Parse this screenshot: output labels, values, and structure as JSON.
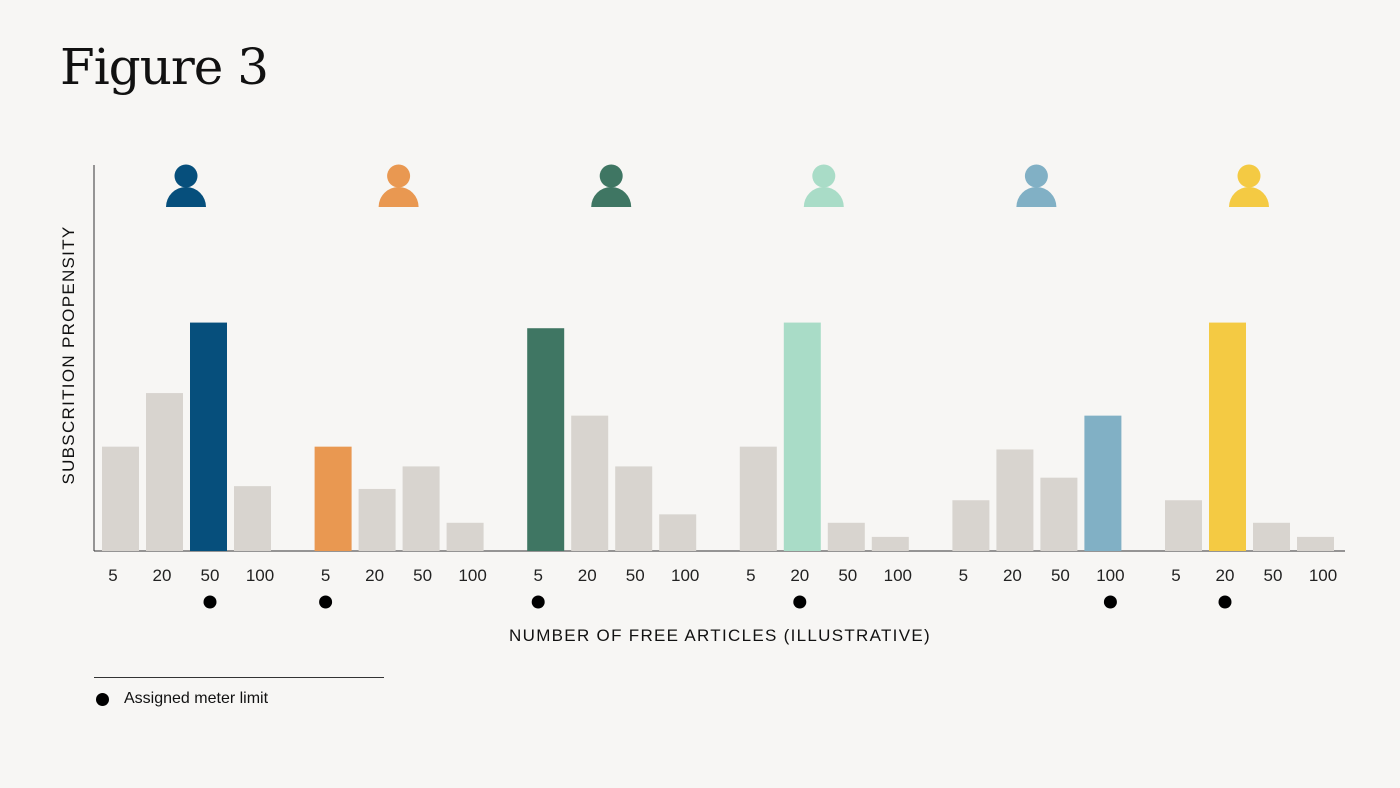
{
  "title": "Figure 3",
  "chart_data": {
    "type": "bar",
    "title": "Figure 3",
    "xlabel": "NUMBER OF FREE ARTICLES (ILLUSTRATIVE)",
    "ylabel": "SUBSCRITION PROPENSITY",
    "categories": [
      "5",
      "20",
      "50",
      "100"
    ],
    "ylim": [
      0,
      100
    ],
    "grid": false,
    "neutral_color": "#d8d4cf",
    "groups": [
      {
        "color": "#064f7c",
        "values": [
          37,
          56,
          81,
          23
        ],
        "assigned": "50",
        "highlight": "50"
      },
      {
        "color": "#e99851",
        "values": [
          37,
          22,
          30,
          10
        ],
        "assigned": "5",
        "highlight": "5"
      },
      {
        "color": "#3f7663",
        "values": [
          79,
          48,
          30,
          13
        ],
        "assigned": "5",
        "highlight": "5"
      },
      {
        "color": "#a9dcc7",
        "values": [
          37,
          81,
          10,
          5
        ],
        "assigned": "20",
        "highlight": "20"
      },
      {
        "color": "#81b0c5",
        "values": [
          18,
          36,
          26,
          48
        ],
        "assigned": "100",
        "highlight": "100"
      },
      {
        "color": "#f4ca43",
        "values": [
          18,
          81,
          10,
          5
        ],
        "assigned": "20",
        "highlight": "20"
      }
    ]
  },
  "legend": {
    "label": "Assigned meter limit",
    "marker_color": "#000000",
    "icon": "person-icon"
  }
}
